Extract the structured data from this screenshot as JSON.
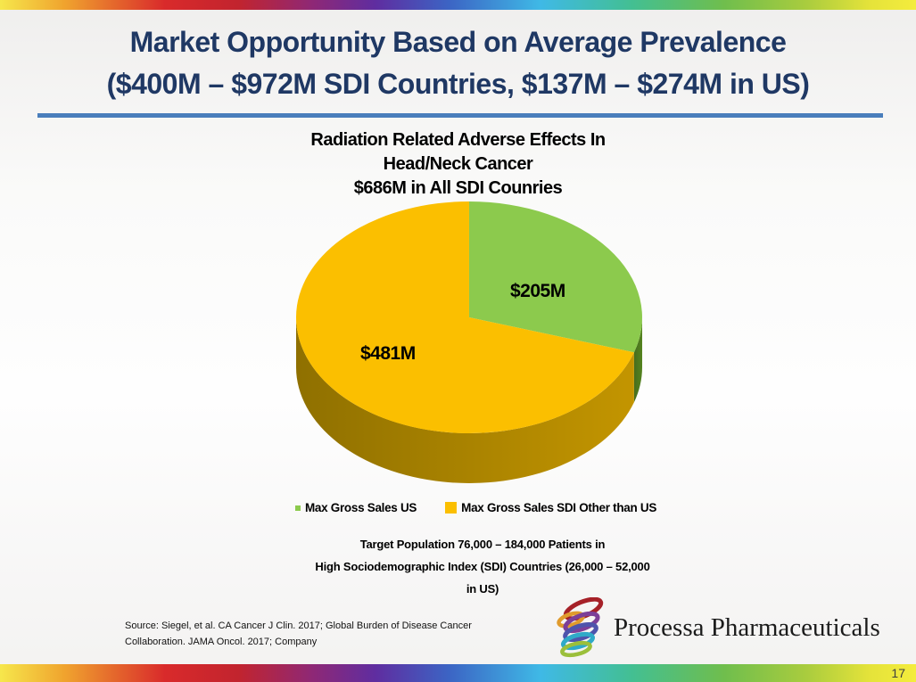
{
  "slide": {
    "title_line1": "Market Opportunity Based on Average Prevalence",
    "title_line2": "($400M – $972M SDI Countries, $137M – $274M in US)",
    "title_color": "#1F3864",
    "rule_color": "#4A7EBB",
    "page_number": "17"
  },
  "chart_data": {
    "type": "pie",
    "style": "3d",
    "title": "Radiation Related Adverse Effects In Head/Neck Cancer $686M in All SDI Counries",
    "title_lines": [
      "Radiation Related Adverse Effects In",
      "Head/Neck Cancer",
      "$686M in All SDI Counries"
    ],
    "total_value_musd": 686,
    "start_angle_deg": -90,
    "direction": "clockwise",
    "legend_position": "bottom",
    "slices": [
      {
        "name": "Max Gross Sales US",
        "value": 205,
        "display": "$205M",
        "color": "#8CCA4D",
        "side_color": "#466D1E",
        "side_color_light": "#55841F"
      },
      {
        "name": "Max Gross Sales SDI Other than US",
        "value": 481,
        "display": "$481M",
        "color": "#FBBF00",
        "side_color": "#8F7000",
        "side_color_light": "#C39500"
      }
    ]
  },
  "notes": {
    "target_line1": "Target Population 76,000 – 184,000 Patients in",
    "target_line2": "High Sociodemographic Index (SDI) Countries (26,000 – 52,000",
    "target_line3": "in US)",
    "source_line1": "Source: Siegel, et al. CA Cancer J Clin. 2017; Global Burden of Disease Cancer",
    "source_line2": "Collaboration. JAMA Oncol. 2017; Company"
  },
  "footer": {
    "logo_text": "Processa Pharmaceuticals"
  }
}
